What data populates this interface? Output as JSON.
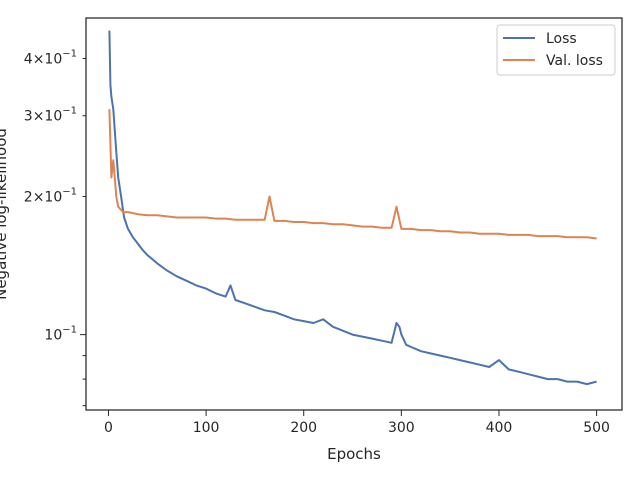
{
  "chart_data": {
    "type": "line",
    "xlabel": "Epochs",
    "ylabel": "Negative log-likelihood",
    "xlim": [
      -23,
      526
    ],
    "ylim": [
      0.0685,
      0.49
    ],
    "y_scale": "log",
    "grid": false,
    "legend_position": "top-right",
    "xticks": [
      0,
      100,
      200,
      300,
      400,
      500
    ],
    "xtick_labels": [
      "0",
      "100",
      "200",
      "300",
      "400",
      "500"
    ],
    "yticks_major": [
      0.1
    ],
    "ytick_major_labels": [
      "10^-1"
    ],
    "yticks_minor": [
      0.07,
      0.08,
      0.09,
      0.2,
      0.3,
      0.4
    ],
    "ytick_minor_labels": [
      "",
      "",
      "",
      "2x10^-1",
      "3x10^-1",
      "4x10^-1"
    ],
    "series": [
      {
        "name": "Loss",
        "color": "#4c72b0",
        "x": [
          1,
          2,
          3,
          5,
          8,
          10,
          13,
          16,
          20,
          25,
          30,
          35,
          40,
          45,
          50,
          60,
          70,
          80,
          90,
          100,
          110,
          120,
          125,
          130,
          140,
          150,
          160,
          170,
          180,
          190,
          200,
          210,
          220,
          230,
          240,
          250,
          260,
          270,
          280,
          290,
          295,
          298,
          300,
          305,
          310,
          320,
          330,
          340,
          350,
          360,
          370,
          380,
          390,
          400,
          410,
          420,
          430,
          440,
          450,
          460,
          470,
          480,
          490,
          500
        ],
        "y": [
          0.46,
          0.35,
          0.33,
          0.31,
          0.25,
          0.22,
          0.2,
          0.18,
          0.17,
          0.163,
          0.158,
          0.153,
          0.149,
          0.146,
          0.143,
          0.138,
          0.134,
          0.131,
          0.128,
          0.126,
          0.123,
          0.121,
          0.128,
          0.119,
          0.117,
          0.115,
          0.113,
          0.112,
          0.11,
          0.108,
          0.107,
          0.106,
          0.108,
          0.104,
          0.102,
          0.1,
          0.099,
          0.098,
          0.097,
          0.096,
          0.106,
          0.104,
          0.1,
          0.095,
          0.094,
          0.092,
          0.091,
          0.09,
          0.089,
          0.088,
          0.087,
          0.086,
          0.085,
          0.088,
          0.084,
          0.083,
          0.082,
          0.081,
          0.08,
          0.08,
          0.079,
          0.079,
          0.078,
          0.079
        ]
      },
      {
        "name": "Val. loss",
        "color": "#dd8452",
        "x": [
          1,
          3,
          5,
          8,
          10,
          15,
          20,
          30,
          40,
          50,
          60,
          70,
          80,
          90,
          100,
          110,
          120,
          130,
          140,
          150,
          160,
          165,
          170,
          180,
          190,
          200,
          210,
          220,
          230,
          240,
          250,
          260,
          270,
          280,
          290,
          295,
          300,
          310,
          320,
          330,
          340,
          350,
          360,
          370,
          380,
          390,
          400,
          410,
          420,
          430,
          440,
          450,
          460,
          470,
          480,
          490,
          500
        ],
        "y": [
          0.31,
          0.22,
          0.24,
          0.2,
          0.19,
          0.185,
          0.185,
          0.183,
          0.182,
          0.182,
          0.181,
          0.18,
          0.18,
          0.18,
          0.18,
          0.179,
          0.179,
          0.178,
          0.178,
          0.178,
          0.178,
          0.2,
          0.177,
          0.177,
          0.176,
          0.176,
          0.175,
          0.175,
          0.174,
          0.174,
          0.173,
          0.172,
          0.172,
          0.171,
          0.171,
          0.19,
          0.17,
          0.17,
          0.169,
          0.169,
          0.168,
          0.168,
          0.167,
          0.167,
          0.166,
          0.166,
          0.166,
          0.165,
          0.165,
          0.165,
          0.164,
          0.164,
          0.164,
          0.163,
          0.163,
          0.163,
          0.162
        ]
      }
    ]
  }
}
